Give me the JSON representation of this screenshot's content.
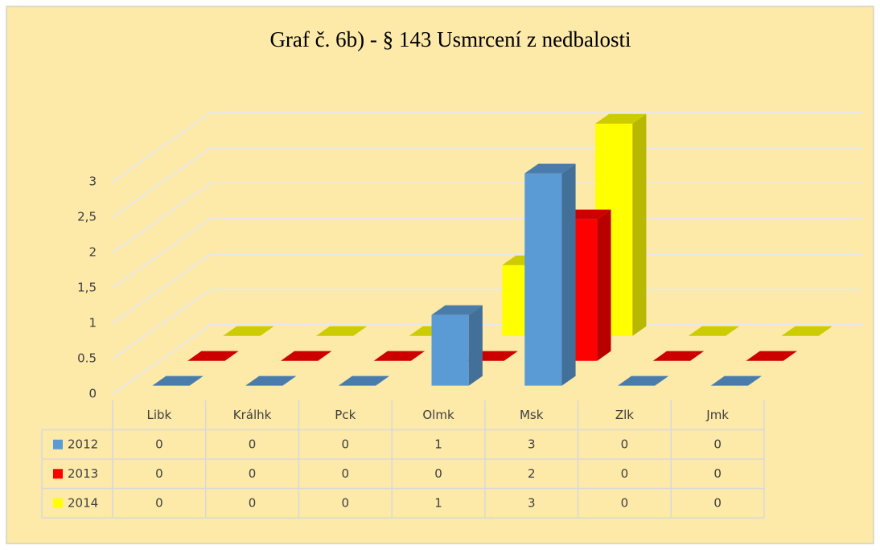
{
  "chart_data": {
    "type": "bar3d",
    "title": "Graf č. 6b) - § 143 Usmrcení z nedbalosti",
    "categories": [
      "Libk",
      "Králhk",
      "Pck",
      "Olmk",
      "Msk",
      "Zlk",
      "Jmk"
    ],
    "series": [
      {
        "name": "2012",
        "color": "#5b9bd5",
        "values": [
          0,
          0,
          0,
          1,
          3,
          0,
          0
        ]
      },
      {
        "name": "2013",
        "color": "#ff0000",
        "values": [
          0,
          0,
          0,
          0,
          2,
          0,
          0
        ]
      },
      {
        "name": "2014",
        "color": "#ffff00",
        "values": [
          0,
          0,
          0,
          1,
          3,
          0,
          0
        ]
      }
    ],
    "ylim": [
      0,
      3
    ],
    "yticks": [
      0,
      0.5,
      1,
      {
        "value": 1.5,
        "label": "1,5"
      },
      2,
      {
        "value": 2.5,
        "label": "2,5"
      },
      3
    ],
    "grid": true,
    "data_table": true
  }
}
